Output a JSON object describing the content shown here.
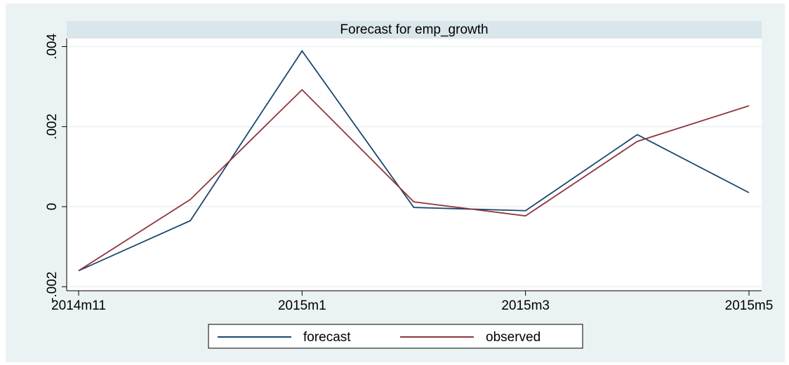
{
  "chart_data": {
    "type": "line",
    "title": "Forecast for emp_growth",
    "categories": [
      "2014m11",
      null,
      "2015m1",
      null,
      "2015m3",
      null,
      "2015m5"
    ],
    "series": [
      {
        "name": "forecast",
        "color": "#1a476f",
        "values": [
          -0.0016,
          -0.00035,
          0.00389,
          -2e-05,
          -0.0001,
          0.0018,
          0.00035
        ]
      },
      {
        "name": "observed",
        "color": "#90353b",
        "values": [
          -0.0016,
          0.00018,
          0.00292,
          0.00012,
          -0.00023,
          0.00163,
          0.00252
        ]
      }
    ],
    "ylim": [
      -0.0021,
      0.0042
    ],
    "yticks": [
      {
        "value": -0.002,
        "label": "-.002"
      },
      0,
      {
        "value": 0.002,
        "label": ".002"
      },
      {
        "value": 0.004,
        "label": ".004"
      }
    ],
    "grid": true
  }
}
